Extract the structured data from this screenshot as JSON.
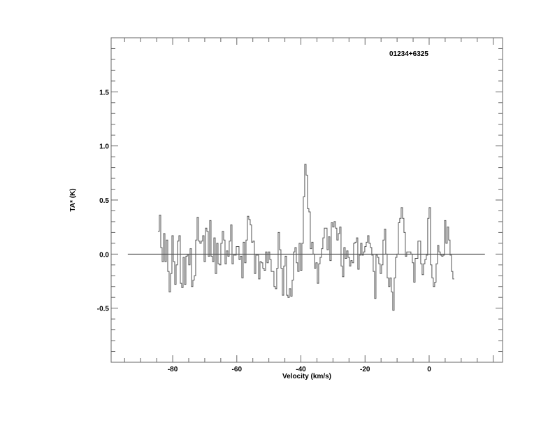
{
  "chart_data": {
    "type": "line",
    "style": "step",
    "title": "01234+6325",
    "xlabel": "Velocity (km/s)",
    "ylabel": "TA* (K)",
    "xlim": [
      -99.2,
      22.9
    ],
    "ylim": [
      -1.0,
      2.0
    ],
    "x_major_ticks": [
      -80,
      -60,
      -40,
      -20,
      0
    ],
    "x_minor_step": 5,
    "y_major_ticks": [
      -0.5,
      0.0,
      0.5,
      1.0,
      1.5
    ],
    "y_minor_step": 0.1,
    "tick_labels_x": [
      "-80",
      "-60",
      "-40",
      "-20",
      "0"
    ],
    "tick_labels_y": [
      "-0.5",
      "0.0",
      "0.5",
      "1.0",
      "1.5"
    ],
    "grid": false,
    "baseline": {
      "y": 0.0,
      "x_from": -94.0,
      "x_to": 17.4
    },
    "velocity_start": -84.6,
    "channel_width": 0.436,
    "values": [
      0.21,
      0.36,
      0.06,
      -0.07,
      0.19,
      -0.07,
      0.13,
      -0.16,
      -0.35,
      -0.18,
      0.17,
      -0.07,
      -0.28,
      -0.1,
      0.12,
      0.17,
      -0.27,
      -0.31,
      -0.03,
      -0.28,
      -0.02,
      -0.01,
      -0.1,
      0.05,
      -0.3,
      -0.24,
      -0.2,
      0.13,
      0.34,
      0.12,
      0.1,
      0.12,
      0.17,
      -0.07,
      0.24,
      0.21,
      -0.02,
      0.31,
      -0.02,
      -0.07,
      0.15,
      -0.18,
      0.1,
      -0.09,
      -0.1,
      0.1,
      0.21,
      0.13,
      -0.09,
      0.03,
      -0.02,
      0.12,
      0.27,
      -0.09,
      -0.01,
      -0.01,
      0.07,
      0.07,
      -0.05,
      -0.02,
      -0.22,
      0.11,
      -0.08,
      0.13,
      0.35,
      0.32,
      0.27,
      0.11,
      0.12,
      -0.18,
      -0.01,
      -0.01,
      -0.23,
      -0.07,
      -0.08,
      -0.13,
      -0.15,
      0.02,
      -0.08,
      0.02,
      -0.05,
      -0.16,
      -0.16,
      -0.3,
      -0.32,
      -0.13,
      0.2,
      0.04,
      -0.13,
      -0.38,
      -0.11,
      -0.02,
      -0.38,
      -0.4,
      -0.32,
      -0.39,
      -0.24,
      0.02,
      0.06,
      -0.08,
      -0.16,
      0.1,
      -0.15,
      0.1,
      0.53,
      0.83,
      0.73,
      0.42,
      0.39,
      0.05,
      0.11,
      0.0,
      -0.13,
      -0.08,
      -0.27,
      -0.09,
      -0.03,
      0.05,
      0.15,
      0.24,
      0.24,
      0.04,
      0.16,
      -0.06,
      0.29,
      0.25,
      0.3,
      0.24,
      0.13,
      0.19,
      0.25,
      -0.11,
      -0.21,
      0.06,
      -0.04,
      0.03,
      -0.03,
      -0.11,
      -0.06,
      -0.08,
      0.1,
      0.11,
      0.15,
      -0.14,
      -0.01,
      0.1,
      -0.01,
      0.02,
      0.07,
      0.11,
      0.17,
      0.1,
      0.06,
      -0.01,
      -0.16,
      -0.41,
      -0.01,
      -0.03,
      -0.09,
      -0.18,
      -0.1,
      0.13,
      0.23,
      0.0,
      -0.22,
      -0.3,
      -0.22,
      -0.35,
      -0.52,
      -0.22,
      -0.03,
      0.0,
      0.29,
      0.33,
      0.43,
      0.33,
      0.2,
      -0.02,
      0.02,
      0.02,
      0.02,
      0.0,
      -0.08,
      -0.26,
      -0.04,
      -0.04,
      0.12,
      0.12,
      -0.09,
      -0.19,
      -0.09,
      -0.05,
      -0.01,
      0.33,
      0.43,
      -0.1,
      -0.22,
      -0.3,
      -0.26,
      -0.09,
      0.08,
      0.02,
      -0.01,
      -0.02,
      -0.01,
      0.31,
      0.1,
      0.25,
      0.13,
      -0.01,
      -0.16,
      -0.23
    ],
    "line_color": "#555555",
    "axis_color": "#666666"
  }
}
